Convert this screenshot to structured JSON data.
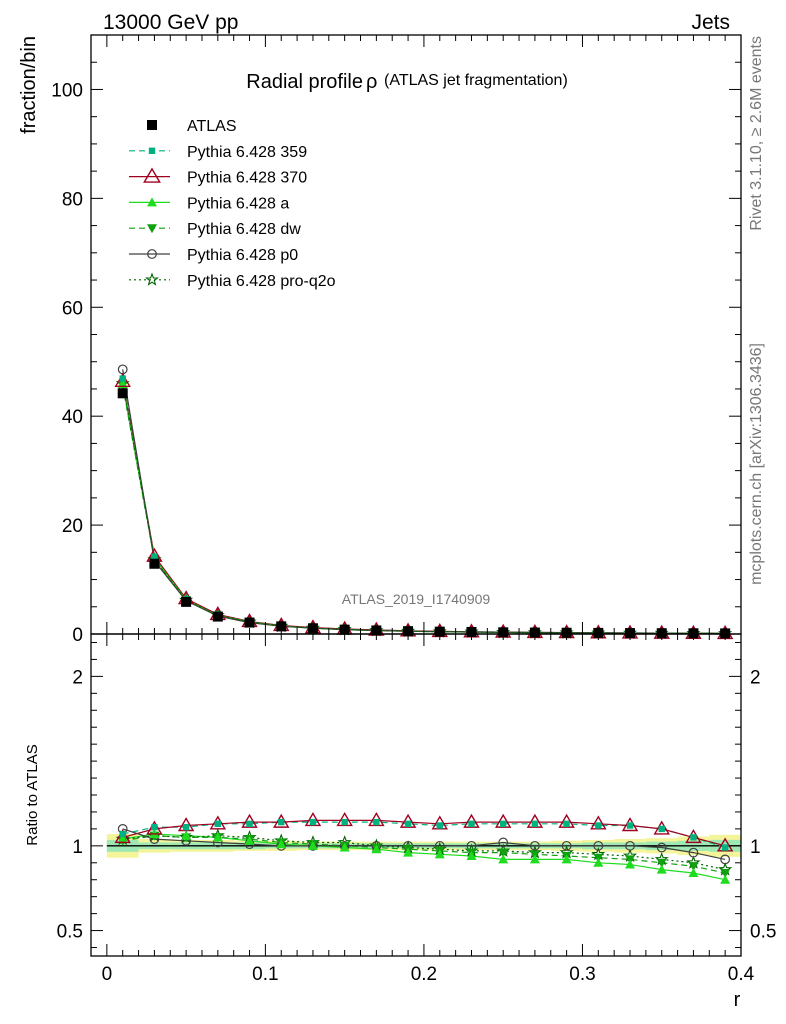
{
  "header": {
    "left": "13000 GeV pp",
    "right": "Jets"
  },
  "side_labels": {
    "rivet": "Rivet 3.1.10, ≥ 2.6M events",
    "mcplots": "mcplots.cern.ch [arXiv:1306.3436]"
  },
  "chart_data": [
    {
      "type": "line",
      "title": "Radial profile",
      "title_symbol": "ρ",
      "subtitle": "(ATLAS jet fragmentation)",
      "ylabel": "fraction/bin",
      "xlabel": "",
      "xlim": [
        -0.01,
        0.4
      ],
      "ylim": [
        0,
        110
      ],
      "yticks": [
        "0",
        "20",
        "40",
        "60",
        "80",
        "100"
      ],
      "watermark": "ATLAS_2019_I1740909",
      "x": [
        0.01,
        0.03,
        0.05,
        0.07,
        0.09,
        0.11,
        0.13,
        0.15,
        0.17,
        0.19,
        0.21,
        0.23,
        0.25,
        0.27,
        0.29,
        0.31,
        0.33,
        0.35,
        0.37,
        0.39
      ],
      "series": [
        {
          "name": "ATLAS",
          "color": "#000000",
          "marker": "square",
          "line": "none",
          "values": [
            44.2,
            12.9,
            5.9,
            3.2,
            2.1,
            1.4,
            1.05,
            0.8,
            0.65,
            0.52,
            0.43,
            0.37,
            0.31,
            0.27,
            0.23,
            0.2,
            0.17,
            0.15,
            0.13,
            0.11
          ]
        },
        {
          "name": "Pythia 6.428 359",
          "color": "#00b27f",
          "marker": "small-square",
          "line": "dashed",
          "values": [
            46.9,
            14.2,
            6.4,
            3.6,
            2.3,
            1.55,
            1.15,
            0.9,
            0.72,
            0.57,
            0.47,
            0.41,
            0.34,
            0.3,
            0.26,
            0.22,
            0.19,
            0.16,
            0.14,
            0.11
          ]
        },
        {
          "name": "Pythia 6.428 370",
          "color": "#a00020",
          "marker": "open-triangle",
          "line": "solid",
          "values": [
            46.4,
            14.3,
            6.5,
            3.6,
            2.3,
            1.57,
            1.17,
            0.91,
            0.73,
            0.58,
            0.48,
            0.41,
            0.35,
            0.3,
            0.26,
            0.22,
            0.19,
            0.16,
            0.14,
            0.11
          ]
        },
        {
          "name": "Pythia 6.428 a",
          "color": "#1fdc1f",
          "marker": "triangle",
          "line": "solid",
          "values": [
            45.9,
            13.9,
            6.3,
            3.4,
            2.2,
            1.45,
            1.07,
            0.8,
            0.64,
            0.5,
            0.41,
            0.35,
            0.29,
            0.25,
            0.21,
            0.18,
            0.15,
            0.13,
            0.11,
            0.09
          ]
        },
        {
          "name": "Pythia 6.428 dw",
          "color": "#10a010",
          "marker": "down-triangle",
          "line": "dashed",
          "values": [
            45.6,
            13.7,
            6.2,
            3.4,
            2.2,
            1.45,
            1.07,
            0.81,
            0.65,
            0.51,
            0.42,
            0.35,
            0.3,
            0.26,
            0.22,
            0.18,
            0.15,
            0.14,
            0.12,
            0.09
          ]
        },
        {
          "name": "Pythia 6.428 p0",
          "color": "#404040",
          "marker": "open-circle",
          "line": "solid",
          "values": [
            48.6,
            13.4,
            6.1,
            3.3,
            2.1,
            1.42,
            1.06,
            0.81,
            0.65,
            0.52,
            0.43,
            0.37,
            0.32,
            0.27,
            0.23,
            0.2,
            0.17,
            0.15,
            0.12,
            0.1
          ]
        },
        {
          "name": "Pythia 6.428 pro-q2o",
          "color": "#006400",
          "marker": "star",
          "line": "dotted",
          "values": [
            46.0,
            13.7,
            6.2,
            3.4,
            2.2,
            1.44,
            1.07,
            0.82,
            0.65,
            0.51,
            0.42,
            0.36,
            0.3,
            0.26,
            0.22,
            0.18,
            0.16,
            0.14,
            0.12,
            0.1
          ]
        }
      ]
    },
    {
      "type": "line",
      "ylabel": "Ratio to ATLAS",
      "xlabel": "r",
      "xlim": [
        -0.01,
        0.4
      ],
      "ylim": [
        0.35,
        2.25
      ],
      "yticks": [
        "0.5",
        "1",
        "2"
      ],
      "ytick_values": [
        0.5,
        1,
        2
      ],
      "xticks": [
        "0",
        "0.1",
        "0.2",
        "0.3",
        "0.4"
      ],
      "xtick_values": [
        0,
        0.1,
        0.2,
        0.3,
        0.4
      ],
      "band_inner": [
        0.035,
        0.02,
        0.02,
        0.02,
        0.02,
        0.015,
        0.015,
        0.015,
        0.015,
        0.015,
        0.015,
        0.015,
        0.015,
        0.015,
        0.015,
        0.02,
        0.02,
        0.025,
        0.03,
        0.035
      ],
      "band_outer": [
        0.07,
        0.04,
        0.035,
        0.035,
        0.03,
        0.03,
        0.025,
        0.025,
        0.025,
        0.025,
        0.025,
        0.025,
        0.025,
        0.025,
        0.03,
        0.035,
        0.04,
        0.045,
        0.055,
        0.065
      ],
      "series": [
        {
          "name": "Pythia 6.428 359",
          "values": [
            1.07,
            1.11,
            1.11,
            1.13,
            1.13,
            1.14,
            1.14,
            1.14,
            1.14,
            1.13,
            1.12,
            1.13,
            1.13,
            1.13,
            1.13,
            1.12,
            1.12,
            1.1,
            1.05,
            0.99
          ]
        },
        {
          "name": "Pythia 6.428 370",
          "values": [
            1.05,
            1.1,
            1.12,
            1.13,
            1.14,
            1.14,
            1.15,
            1.15,
            1.15,
            1.14,
            1.13,
            1.14,
            1.14,
            1.14,
            1.14,
            1.13,
            1.12,
            1.1,
            1.05,
            1.0
          ]
        },
        {
          "name": "Pythia 6.428 a",
          "values": [
            1.04,
            1.07,
            1.06,
            1.05,
            1.03,
            1.01,
            1.0,
            0.99,
            0.98,
            0.96,
            0.95,
            0.94,
            0.92,
            0.92,
            0.92,
            0.9,
            0.89,
            0.86,
            0.84,
            0.8
          ]
        },
        {
          "name": "Pythia 6.428 dw",
          "values": [
            1.03,
            1.06,
            1.05,
            1.05,
            1.04,
            1.02,
            1.01,
            1.0,
            0.99,
            0.98,
            0.97,
            0.96,
            0.96,
            0.95,
            0.94,
            0.93,
            0.92,
            0.9,
            0.88,
            0.84
          ]
        },
        {
          "name": "Pythia 6.428 p0",
          "values": [
            1.1,
            1.04,
            1.03,
            1.02,
            1.01,
            1.0,
            1.0,
            1.0,
            1.0,
            1.0,
            1.0,
            1.0,
            1.02,
            1.0,
            1.0,
            1.0,
            1.0,
            0.99,
            0.96,
            0.92
          ]
        },
        {
          "name": "Pythia 6.428 pro-q2o",
          "values": [
            1.04,
            1.06,
            1.05,
            1.06,
            1.05,
            1.03,
            1.02,
            1.02,
            1.0,
            0.99,
            0.98,
            0.97,
            0.97,
            0.96,
            0.96,
            0.95,
            0.94,
            0.92,
            0.9,
            0.86
          ]
        }
      ]
    }
  ]
}
